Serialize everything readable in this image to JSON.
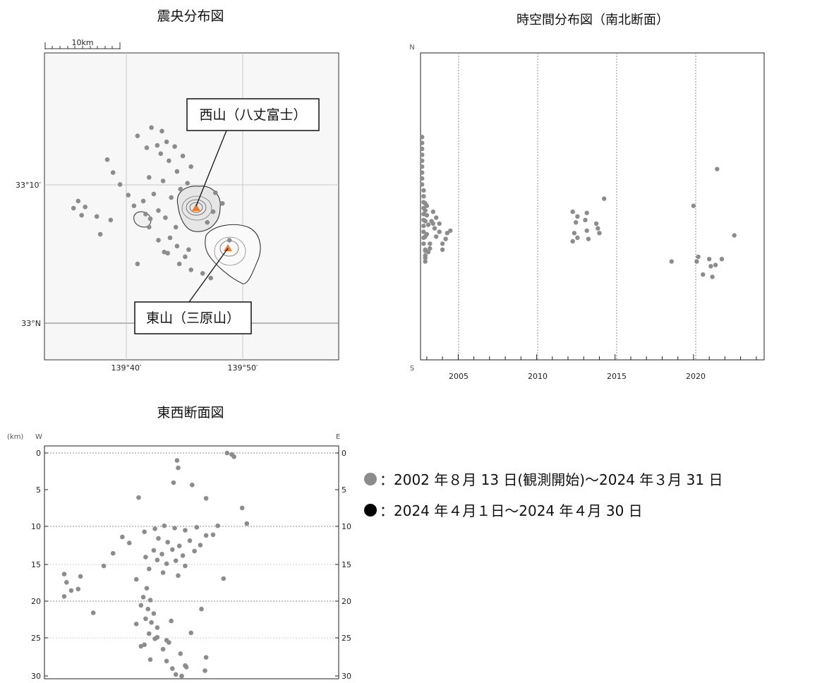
{
  "titles": {
    "epicenter": "震央分布図",
    "spacetime": "時空間分布図（南北断面）",
    "ewsection": "東西断面図"
  },
  "map": {
    "scale_label": "10km",
    "lat_ticks": [
      "33°10′",
      "33°N"
    ],
    "lon_ticks": [
      "139°40′",
      "139°50′"
    ],
    "callout_west": "西山（八丈富士）",
    "callout_east": "東山（三原山）"
  },
  "spacetime": {
    "north_label": "N",
    "south_label": "S",
    "year_ticks": [
      "2005",
      "2010",
      "2015",
      "2020"
    ]
  },
  "ewsection": {
    "unit_label": "(km)",
    "west_label": "W",
    "east_label": "E",
    "depth_ticks": [
      "0",
      "5",
      "10",
      "15",
      "20",
      "25",
      "30"
    ]
  },
  "legend": {
    "gray_label": "：2002 年８月 13 日(観測開始)～2024 年３月 31 日",
    "black_label": "：2024 年４月１日～2024 年４月 30 日",
    "gray_color": "#8c8c8c",
    "black_color": "#000000"
  },
  "colors": {
    "volcano": "#f07a2a",
    "point": "#8c8c8c"
  },
  "chart_data": [
    {
      "type": "scatter",
      "title": "震央分布図",
      "x_unit": "longitude (minutes past 139°)",
      "y_unit": "latitude (minutes past 33°)",
      "xlim": [
        32.9,
        58.2
      ],
      "ylim": [
        -3,
        22.9
      ],
      "x": [
        42.6,
        43.4,
        44.1,
        42.9,
        44.8,
        43.6,
        45.5,
        44.3,
        41.9,
        43.1,
        45.2,
        44.6,
        42.3,
        43.8,
        41.4,
        40.6,
        40.1,
        39.4,
        38.8,
        38.3,
        40.9,
        42.1,
        43.0,
        41.7,
        42.7,
        42.0,
        43.3,
        44.2,
        46.9,
        47.4,
        48.2,
        47.6,
        43.7,
        44.3,
        43.2,
        45.0,
        44.5,
        45.5,
        46.5,
        47.2,
        35.8,
        35.4,
        36.1,
        36.4,
        37.4,
        38.6,
        37.7,
        41.6,
        41.9,
        42.7,
        43.5,
        40.9,
        45.3,
        48.8
      ],
      "y": [
        15.1,
        15.4,
        15.0,
        14.4,
        14.2,
        13.8,
        13.3,
        12.9,
        12.4,
        12.1,
        11.9,
        11.4,
        11.0,
        10.7,
        10.4,
        10.0,
        10.9,
        11.8,
        12.8,
        13.9,
        15.9,
        16.6,
        16.3,
        14.9,
        9.6,
        8.9,
        9.0,
        8.2,
        8.6,
        9.5,
        10.2,
        11.1,
        7.3,
        6.6,
        6.1,
        5.7,
        5.1,
        4.6,
        4.3,
        3.9,
        10.4,
        9.8,
        9.2,
        9.9,
        9.1,
        8.8,
        7.6,
        9.3,
        8.2,
        7.1,
        6.0,
        5.1,
        6.3,
        7.1
      ]
    },
    {
      "type": "scatter",
      "title": "時空間分布図（南北断面）",
      "x_unit": "year",
      "y_unit": "latitude (minutes past 33°)",
      "xlim": [
        2002.6,
        2024.5
      ],
      "ylim": [
        -3,
        22.9
      ],
      "x": [
        2002.7,
        2002.7,
        2002.7,
        2002.7,
        2002.7,
        2002.7,
        2002.7,
        2002.7,
        2002.7,
        2002.8,
        2002.8,
        2002.8,
        2002.8,
        2002.8,
        2002.8,
        2002.8,
        2002.8,
        2002.8,
        2002.8,
        2002.9,
        2002.9,
        2002.9,
        2002.9,
        2002.9,
        2002.9,
        2002.9,
        2002.9,
        2002.9,
        2003.0,
        2003.0,
        2003.1,
        2003.0,
        2003.2,
        2003.1,
        2003.4,
        2003.3,
        2003.5,
        2003.8,
        2004.3,
        2003.6,
        2004.2,
        2004.0,
        2004.5,
        2003.4,
        2004.0,
        2003.2,
        2003.8,
        2003.6,
        2012.3,
        2012.6,
        2013.2,
        2012.5,
        2013.1,
        2013.8,
        2013.2,
        2012.4,
        2013.9,
        2012.6,
        2013.3,
        2014.0,
        2012.3,
        2014.3,
        2018.6,
        2020.2,
        2020.6,
        2020.3,
        2021.1,
        2021.4,
        2021.8,
        2021.2,
        2021.0,
        2020.0,
        2021.5,
        2022.6
      ],
      "y": [
        15.8,
        15.3,
        14.8,
        14.3,
        13.8,
        13.3,
        12.8,
        12.3,
        11.8,
        11.3,
        10.8,
        10.3,
        9.8,
        9.3,
        8.8,
        8.3,
        7.8,
        7.3,
        6.8,
        6.3,
        5.8,
        5.3,
        10.2,
        9.6,
        8.7,
        7.4,
        6.2,
        5.6,
        10.0,
        9.2,
        8.4,
        7.6,
        6.8,
        6.1,
        9.5,
        8.7,
        8.1,
        7.8,
        7.7,
        9.0,
        7.2,
        6.3,
        7.9,
        8.5,
        6.8,
        6.4,
        8.5,
        7.4,
        9.5,
        9.1,
        9.4,
        8.6,
        8.8,
        8.5,
        7.9,
        7.7,
        8.1,
        7.3,
        7.2,
        7.7,
        7.0,
        10.6,
        5.3,
        5.3,
        4.2,
        5.7,
        4.9,
        5.0,
        5.5,
        4.0,
        5.5,
        10.0,
        13.1,
        7.5
      ]
    },
    {
      "type": "scatter",
      "title": "東西断面図",
      "x_unit": "longitude (minutes past 139°)",
      "y_unit": "depth (km)",
      "ylabel": "(km)",
      "xlim": [
        32.9,
        58.2
      ],
      "ylim": [
        30,
        0
      ],
      "x": [
        48.6,
        49.0,
        49.2,
        44.3,
        44.4,
        44.0,
        41.0,
        45.6,
        46.8,
        41.5,
        42.4,
        43.2,
        44.1,
        45.0,
        46.0,
        46.8,
        42.7,
        43.5,
        44.5,
        45.4,
        46.3,
        42.3,
        43.0,
        43.9,
        44.8,
        45.8,
        42.6,
        43.4,
        44.2,
        45.0,
        41.9,
        43.1,
        44.4,
        47.4,
        47.8,
        50.3,
        49.9,
        39.6,
        40.2,
        38.8,
        38.0,
        41.6,
        40.8,
        34.6,
        34.8,
        35.2,
        34.6,
        36.0,
        35.8,
        37.1,
        41.7,
        41.4,
        42.0,
        41.2,
        41.8,
        42.3,
        41.6,
        42.1,
        42.6,
        41.9,
        42.4,
        41.5,
        43.1,
        44.6,
        46.8,
        43.4,
        45.0,
        46.7,
        41.2,
        43.6,
        45.5,
        40.8,
        43.9,
        42.0,
        44.2,
        45.1,
        44.7,
        43.4,
        43.8,
        42.6,
        46.4,
        48.3
      ],
      "y": [
        0.0,
        0.2,
        0.5,
        1.0,
        2.0,
        4.0,
        6.0,
        4.3,
        6.1,
        10.6,
        10.2,
        9.8,
        10.1,
        10.4,
        10.0,
        11.1,
        11.5,
        12.0,
        12.5,
        11.8,
        12.4,
        13.1,
        13.6,
        13.0,
        13.8,
        13.2,
        14.4,
        14.9,
        14.5,
        15.2,
        15.6,
        16.1,
        16.5,
        11.0,
        9.8,
        9.5,
        7.4,
        11.3,
        12.1,
        13.5,
        15.2,
        14.0,
        17.0,
        16.3,
        17.4,
        18.5,
        19.3,
        16.6,
        18.3,
        21.5,
        18.2,
        19.4,
        19.8,
        20.5,
        21.0,
        21.6,
        22.3,
        22.8,
        23.5,
        24.3,
        25.0,
        25.8,
        26.4,
        27.0,
        27.5,
        28.0,
        28.6,
        29.3,
        26.0,
        25.5,
        24.2,
        23.0,
        29.0,
        27.8,
        29.8,
        28.8,
        30.0,
        25.2,
        22.6,
        24.8,
        21.0,
        16.9
      ]
    }
  ]
}
